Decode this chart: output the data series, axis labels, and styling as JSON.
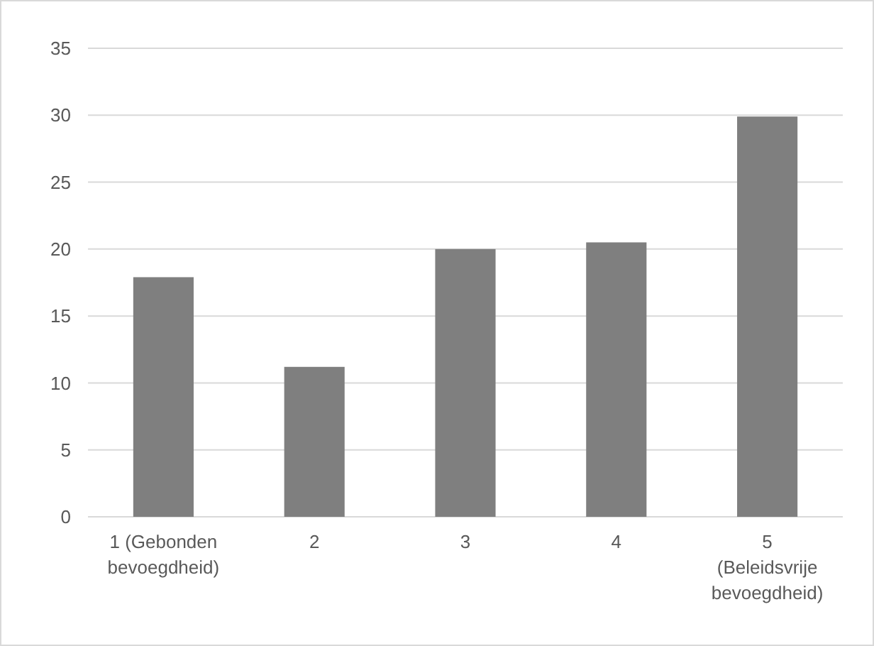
{
  "chart_data": {
    "type": "bar",
    "categories": [
      "1 (Gebonden bevoegdheid)",
      "2",
      "3",
      "4",
      "5 (Beleidsvrije bevoegdheid)"
    ],
    "values": [
      17.9,
      11.2,
      20,
      20.5,
      29.9
    ],
    "color": "#7f7f7f",
    "ylim": [
      0,
      35
    ],
    "yticks": [
      0,
      5,
      10,
      15,
      20,
      25,
      30,
      35
    ],
    "grid": "y"
  }
}
